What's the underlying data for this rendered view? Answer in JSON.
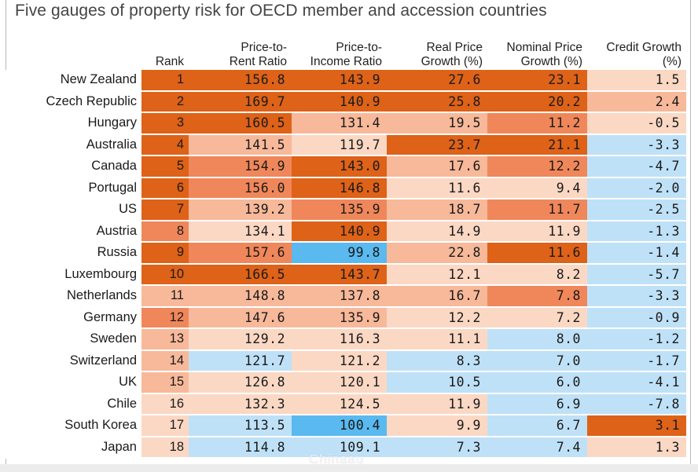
{
  "title": "Five gauges of property risk for OECD member and accession countries",
  "watermark": "Chinaau",
  "chart_data": {
    "type": "table",
    "title": "Five gauges of property risk for OECD member and accession countries",
    "columns": [
      {
        "key": "rank",
        "label": [
          "",
          "Rank"
        ]
      },
      {
        "key": "price_to_rent",
        "label": [
          "Price-to-",
          "Rent Ratio"
        ]
      },
      {
        "key": "price_to_income",
        "label": [
          "Price-to-",
          "Income Ratio"
        ]
      },
      {
        "key": "real_price_growth",
        "label": [
          "Real Price",
          "Growth (%)"
        ]
      },
      {
        "key": "nominal_price_growth",
        "label": [
          "Nominal Price",
          "Growth (%)"
        ]
      },
      {
        "key": "credit_growth",
        "label": [
          "Credit Growth",
          "(%)"
        ]
      }
    ],
    "colors": {
      "dark_orange": "#de6218",
      "mid_orange": "#f0875a",
      "light_orange": "#f7b99a",
      "pale_orange": "#fbd8c4",
      "light_blue": "#bfe1f7",
      "bright_blue": "#5ab9ef"
    },
    "rows": [
      {
        "country": "New Zealand",
        "rank": "1",
        "price_to_rent": "156.8",
        "price_to_income": "143.9",
        "real_price_growth": "27.6",
        "nominal_price_growth": "23.1",
        "credit_growth": "1.5",
        "shades": [
          "dark_orange",
          "dark_orange",
          "dark_orange",
          "dark_orange",
          "dark_orange",
          "pale_orange"
        ]
      },
      {
        "country": "Czech Republic",
        "rank": "2",
        "price_to_rent": "169.7",
        "price_to_income": "140.9",
        "real_price_growth": "25.8",
        "nominal_price_growth": "20.2",
        "credit_growth": "2.4",
        "shades": [
          "dark_orange",
          "dark_orange",
          "dark_orange",
          "dark_orange",
          "dark_orange",
          "light_orange"
        ]
      },
      {
        "country": "Hungary",
        "rank": "3",
        "price_to_rent": "160.5",
        "price_to_income": "131.4",
        "real_price_growth": "19.5",
        "nominal_price_growth": "11.2",
        "credit_growth": "-0.5",
        "shades": [
          "dark_orange",
          "dark_orange",
          "light_orange",
          "light_orange",
          "mid_orange",
          "pale_orange"
        ]
      },
      {
        "country": "Australia",
        "rank": "4",
        "price_to_rent": "141.5",
        "price_to_income": "119.7",
        "real_price_growth": "23.7",
        "nominal_price_growth": "21.1",
        "credit_growth": "-3.3",
        "shades": [
          "dark_orange",
          "light_orange",
          "pale_orange",
          "dark_orange",
          "dark_orange",
          "light_blue"
        ]
      },
      {
        "country": "Canada",
        "rank": "5",
        "price_to_rent": "154.9",
        "price_to_income": "143.0",
        "real_price_growth": "17.6",
        "nominal_price_growth": "12.2",
        "credit_growth": "-4.7",
        "shades": [
          "dark_orange",
          "mid_orange",
          "dark_orange",
          "light_orange",
          "mid_orange",
          "light_blue"
        ]
      },
      {
        "country": "Portugal",
        "rank": "6",
        "price_to_rent": "156.0",
        "price_to_income": "146.8",
        "real_price_growth": "11.6",
        "nominal_price_growth": "9.4",
        "credit_growth": "-2.0",
        "shades": [
          "dark_orange",
          "mid_orange",
          "dark_orange",
          "pale_orange",
          "pale_orange",
          "light_blue"
        ]
      },
      {
        "country": "US",
        "rank": "7",
        "price_to_rent": "139.2",
        "price_to_income": "135.9",
        "real_price_growth": "18.7",
        "nominal_price_growth": "11.7",
        "credit_growth": "-2.5",
        "shades": [
          "dark_orange",
          "light_orange",
          "mid_orange",
          "light_orange",
          "mid_orange",
          "light_blue"
        ]
      },
      {
        "country": "Austria",
        "rank": "8",
        "price_to_rent": "134.1",
        "price_to_income": "140.9",
        "real_price_growth": "14.9",
        "nominal_price_growth": "11.9",
        "credit_growth": "-1.3",
        "shades": [
          "mid_orange",
          "pale_orange",
          "dark_orange",
          "pale_orange",
          "pale_orange",
          "light_blue"
        ]
      },
      {
        "country": "Russia",
        "rank": "9",
        "price_to_rent": "157.6",
        "price_to_income": "99.8",
        "real_price_growth": "22.8",
        "nominal_price_growth": "11.6",
        "credit_growth": "-1.4",
        "shades": [
          "dark_orange",
          "mid_orange",
          "bright_blue",
          "light_orange",
          "dark_orange",
          "light_blue"
        ]
      },
      {
        "country": "Luxembourg",
        "rank": "10",
        "price_to_rent": "166.5",
        "price_to_income": "143.7",
        "real_price_growth": "12.1",
        "nominal_price_growth": "8.2",
        "credit_growth": "-5.7",
        "shades": [
          "dark_orange",
          "dark_orange",
          "dark_orange",
          "pale_orange",
          "pale_orange",
          "light_blue"
        ]
      },
      {
        "country": "Netherlands",
        "rank": "11",
        "price_to_rent": "148.8",
        "price_to_income": "137.8",
        "real_price_growth": "16.7",
        "nominal_price_growth": "7.8",
        "credit_growth": "-3.3",
        "shades": [
          "light_orange",
          "light_orange",
          "light_orange",
          "light_orange",
          "mid_orange",
          "light_blue"
        ]
      },
      {
        "country": "Germany",
        "rank": "12",
        "price_to_rent": "147.6",
        "price_to_income": "135.9",
        "real_price_growth": "12.2",
        "nominal_price_growth": "7.2",
        "credit_growth": "-0.9",
        "shades": [
          "mid_orange",
          "light_orange",
          "light_orange",
          "pale_orange",
          "pale_orange",
          "light_blue"
        ]
      },
      {
        "country": "Sweden",
        "rank": "13",
        "price_to_rent": "129.2",
        "price_to_income": "116.3",
        "real_price_growth": "11.1",
        "nominal_price_growth": "8.0",
        "credit_growth": "-1.2",
        "shades": [
          "light_orange",
          "pale_orange",
          "pale_orange",
          "pale_orange",
          "light_blue",
          "light_blue"
        ]
      },
      {
        "country": "Switzerland",
        "rank": "14",
        "price_to_rent": "121.7",
        "price_to_income": "121.2",
        "real_price_growth": "8.3",
        "nominal_price_growth": "7.0",
        "credit_growth": "-1.7",
        "shades": [
          "light_orange",
          "light_blue",
          "pale_orange",
          "light_blue",
          "light_blue",
          "light_blue"
        ]
      },
      {
        "country": "UK",
        "rank": "15",
        "price_to_rent": "126.8",
        "price_to_income": "120.1",
        "real_price_growth": "10.5",
        "nominal_price_growth": "6.0",
        "credit_growth": "-4.1",
        "shades": [
          "light_orange",
          "pale_orange",
          "pale_orange",
          "light_blue",
          "light_blue",
          "light_blue"
        ]
      },
      {
        "country": "Chile",
        "rank": "16",
        "price_to_rent": "132.3",
        "price_to_income": "124.5",
        "real_price_growth": "11.9",
        "nominal_price_growth": "6.9",
        "credit_growth": "-7.8",
        "shades": [
          "pale_orange",
          "pale_orange",
          "pale_orange",
          "pale_orange",
          "light_blue",
          "light_blue"
        ]
      },
      {
        "country": "South Korea",
        "rank": "17",
        "price_to_rent": "113.5",
        "price_to_income": "100.4",
        "real_price_growth": "9.9",
        "nominal_price_growth": "6.7",
        "credit_growth": "3.1",
        "shades": [
          "pale_orange",
          "light_blue",
          "bright_blue",
          "pale_orange",
          "light_blue",
          "dark_orange"
        ]
      },
      {
        "country": "Japan",
        "rank": "18",
        "price_to_rent": "114.8",
        "price_to_income": "109.1",
        "real_price_growth": "7.3",
        "nominal_price_growth": "7.4",
        "credit_growth": "1.3",
        "shades": [
          "pale_orange",
          "light_blue",
          "light_blue",
          "light_blue",
          "light_blue",
          "pale_orange"
        ]
      }
    ]
  }
}
